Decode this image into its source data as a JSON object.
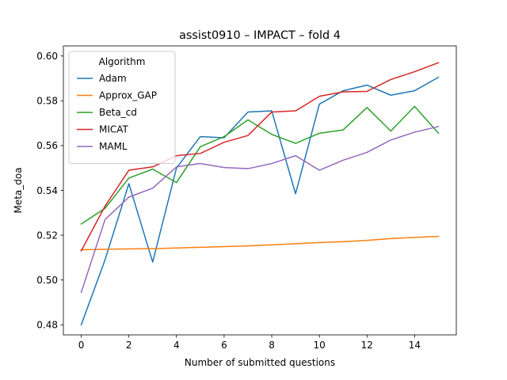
{
  "chart_data": {
    "type": "line",
    "title": "assist0910 – IMPACT – fold 4",
    "xlabel": "Number of submitted questions",
    "ylabel": "Meta_doa",
    "xlim": [
      -0.75,
      15.75
    ],
    "ylim": [
      0.4755,
      0.6045
    ],
    "xticks": [
      0,
      2,
      4,
      6,
      8,
      10,
      12,
      14
    ],
    "yticks": [
      0.48,
      0.5,
      0.52,
      0.54,
      0.56,
      0.58,
      0.6
    ],
    "ytick_labels": [
      "0.48",
      "0.50",
      "0.52",
      "0.54",
      "0.56",
      "0.58",
      "0.60"
    ],
    "grid": false,
    "legend": {
      "title": "Algorithm",
      "placement": "upper-left"
    },
    "x": [
      0,
      1,
      2,
      3,
      4,
      5,
      6,
      7,
      8,
      9,
      10,
      11,
      12,
      13,
      14,
      15
    ],
    "series": [
      {
        "name": "Adam",
        "color": "#1f77b4",
        "values": [
          0.48,
          0.509,
          0.543,
          0.508,
          0.55,
          0.564,
          0.5635,
          0.575,
          0.5755,
          0.5385,
          0.5785,
          0.5845,
          0.587,
          0.5825,
          0.5845,
          0.5905
        ]
      },
      {
        "name": "Approx_GAP",
        "color": "#ff7f0e",
        "values": [
          0.5135,
          0.5137,
          0.5139,
          0.514,
          0.5143,
          0.5146,
          0.5149,
          0.5152,
          0.5157,
          0.5162,
          0.5167,
          0.5171,
          0.5177,
          0.5185,
          0.519,
          0.5195
        ]
      },
      {
        "name": "Beta_cd",
        "color": "#2ca02c",
        "values": [
          0.525,
          0.532,
          0.5455,
          0.5495,
          0.5435,
          0.5595,
          0.564,
          0.5715,
          0.565,
          0.561,
          0.5655,
          0.567,
          0.577,
          0.5665,
          0.5775,
          0.5655
        ]
      },
      {
        "name": "MICAT",
        "color": "#d62728",
        "values": [
          0.513,
          0.533,
          0.549,
          0.5505,
          0.5555,
          0.5565,
          0.5615,
          0.5645,
          0.575,
          0.5755,
          0.582,
          0.584,
          0.5842,
          0.5895,
          0.593,
          0.597
        ]
      },
      {
        "name": "MAML",
        "color": "#9467bd",
        "values": [
          0.4945,
          0.527,
          0.537,
          0.541,
          0.5505,
          0.552,
          0.5502,
          0.5497,
          0.552,
          0.5555,
          0.549,
          0.5535,
          0.557,
          0.5625,
          0.566,
          0.5685
        ]
      }
    ]
  }
}
